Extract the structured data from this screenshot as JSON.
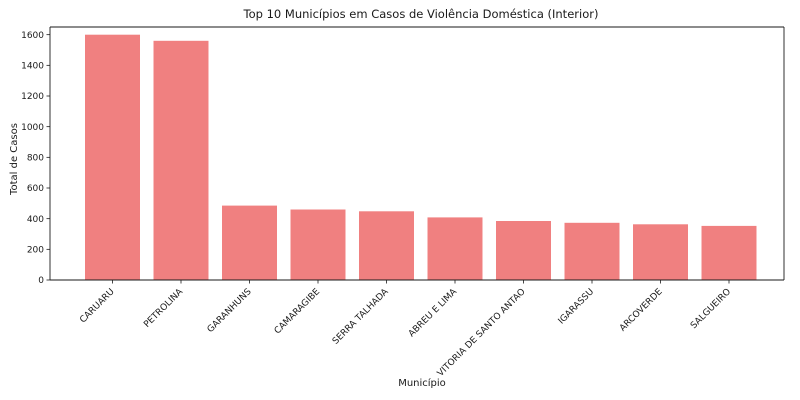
{
  "chart_data": {
    "type": "bar",
    "title": "Top 10 Municípios em Casos de Violência Doméstica (Interior)",
    "xlabel": "Município",
    "ylabel": "Total de Casos",
    "categories": [
      "CARUARU",
      "PETROLINA",
      "GARANHUNS",
      "CAMARAGIBE",
      "SERRA TALHADA",
      "ABREU E LIMA",
      "VITORIA DE SANTO ANTAO",
      "IGARASSU",
      "ARCOVERDE",
      "SALGUEIRO"
    ],
    "values": [
      1600,
      1560,
      485,
      460,
      448,
      408,
      385,
      373,
      363,
      353
    ],
    "ylim": [
      0,
      1650
    ],
    "yticks": [
      "0",
      "200",
      "400",
      "600",
      "800",
      "1000",
      "1200",
      "1400",
      "1600"
    ],
    "bar_color": "#f08080",
    "grid": false,
    "legend": "none"
  }
}
